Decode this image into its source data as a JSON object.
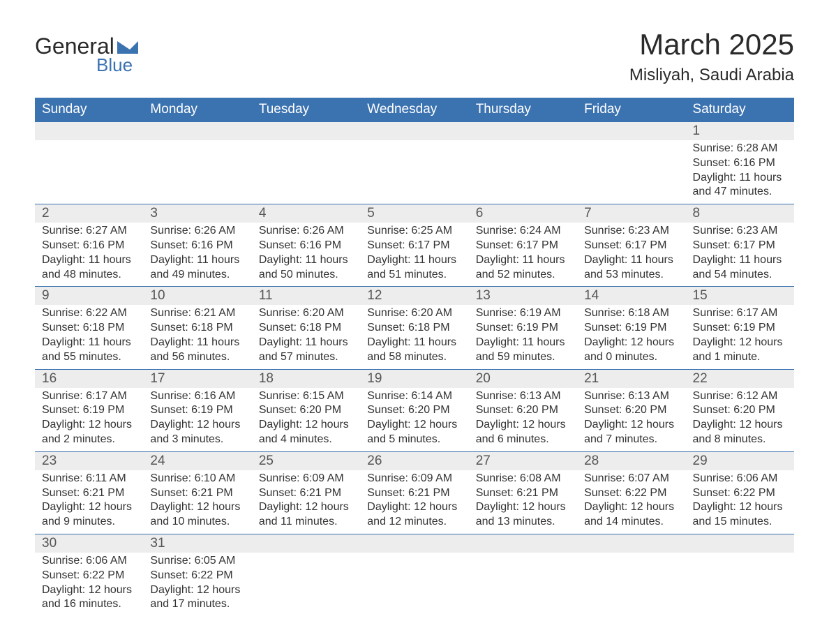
{
  "logo": {
    "word1": "General",
    "word2": "Blue"
  },
  "title": "March 2025",
  "location": "Misliyah, Saudi Arabia",
  "colors": {
    "header_bg": "#3b72b0",
    "header_text": "#ffffff",
    "daynum_bg": "#ededed",
    "body_text": "#333333",
    "border": "#3b72b0"
  },
  "weekdays": [
    "Sunday",
    "Monday",
    "Tuesday",
    "Wednesday",
    "Thursday",
    "Friday",
    "Saturday"
  ],
  "weeks": [
    [
      null,
      null,
      null,
      null,
      null,
      null,
      {
        "n": "1",
        "sr": "Sunrise: 6:28 AM",
        "ss": "Sunset: 6:16 PM",
        "dl": "Daylight: 11 hours and 47 minutes."
      }
    ],
    [
      {
        "n": "2",
        "sr": "Sunrise: 6:27 AM",
        "ss": "Sunset: 6:16 PM",
        "dl": "Daylight: 11 hours and 48 minutes."
      },
      {
        "n": "3",
        "sr": "Sunrise: 6:26 AM",
        "ss": "Sunset: 6:16 PM",
        "dl": "Daylight: 11 hours and 49 minutes."
      },
      {
        "n": "4",
        "sr": "Sunrise: 6:26 AM",
        "ss": "Sunset: 6:16 PM",
        "dl": "Daylight: 11 hours and 50 minutes."
      },
      {
        "n": "5",
        "sr": "Sunrise: 6:25 AM",
        "ss": "Sunset: 6:17 PM",
        "dl": "Daylight: 11 hours and 51 minutes."
      },
      {
        "n": "6",
        "sr": "Sunrise: 6:24 AM",
        "ss": "Sunset: 6:17 PM",
        "dl": "Daylight: 11 hours and 52 minutes."
      },
      {
        "n": "7",
        "sr": "Sunrise: 6:23 AM",
        "ss": "Sunset: 6:17 PM",
        "dl": "Daylight: 11 hours and 53 minutes."
      },
      {
        "n": "8",
        "sr": "Sunrise: 6:23 AM",
        "ss": "Sunset: 6:17 PM",
        "dl": "Daylight: 11 hours and 54 minutes."
      }
    ],
    [
      {
        "n": "9",
        "sr": "Sunrise: 6:22 AM",
        "ss": "Sunset: 6:18 PM",
        "dl": "Daylight: 11 hours and 55 minutes."
      },
      {
        "n": "10",
        "sr": "Sunrise: 6:21 AM",
        "ss": "Sunset: 6:18 PM",
        "dl": "Daylight: 11 hours and 56 minutes."
      },
      {
        "n": "11",
        "sr": "Sunrise: 6:20 AM",
        "ss": "Sunset: 6:18 PM",
        "dl": "Daylight: 11 hours and 57 minutes."
      },
      {
        "n": "12",
        "sr": "Sunrise: 6:20 AM",
        "ss": "Sunset: 6:18 PM",
        "dl": "Daylight: 11 hours and 58 minutes."
      },
      {
        "n": "13",
        "sr": "Sunrise: 6:19 AM",
        "ss": "Sunset: 6:19 PM",
        "dl": "Daylight: 11 hours and 59 minutes."
      },
      {
        "n": "14",
        "sr": "Sunrise: 6:18 AM",
        "ss": "Sunset: 6:19 PM",
        "dl": "Daylight: 12 hours and 0 minutes."
      },
      {
        "n": "15",
        "sr": "Sunrise: 6:17 AM",
        "ss": "Sunset: 6:19 PM",
        "dl": "Daylight: 12 hours and 1 minute."
      }
    ],
    [
      {
        "n": "16",
        "sr": "Sunrise: 6:17 AM",
        "ss": "Sunset: 6:19 PM",
        "dl": "Daylight: 12 hours and 2 minutes."
      },
      {
        "n": "17",
        "sr": "Sunrise: 6:16 AM",
        "ss": "Sunset: 6:19 PM",
        "dl": "Daylight: 12 hours and 3 minutes."
      },
      {
        "n": "18",
        "sr": "Sunrise: 6:15 AM",
        "ss": "Sunset: 6:20 PM",
        "dl": "Daylight: 12 hours and 4 minutes."
      },
      {
        "n": "19",
        "sr": "Sunrise: 6:14 AM",
        "ss": "Sunset: 6:20 PM",
        "dl": "Daylight: 12 hours and 5 minutes."
      },
      {
        "n": "20",
        "sr": "Sunrise: 6:13 AM",
        "ss": "Sunset: 6:20 PM",
        "dl": "Daylight: 12 hours and 6 minutes."
      },
      {
        "n": "21",
        "sr": "Sunrise: 6:13 AM",
        "ss": "Sunset: 6:20 PM",
        "dl": "Daylight: 12 hours and 7 minutes."
      },
      {
        "n": "22",
        "sr": "Sunrise: 6:12 AM",
        "ss": "Sunset: 6:20 PM",
        "dl": "Daylight: 12 hours and 8 minutes."
      }
    ],
    [
      {
        "n": "23",
        "sr": "Sunrise: 6:11 AM",
        "ss": "Sunset: 6:21 PM",
        "dl": "Daylight: 12 hours and 9 minutes."
      },
      {
        "n": "24",
        "sr": "Sunrise: 6:10 AM",
        "ss": "Sunset: 6:21 PM",
        "dl": "Daylight: 12 hours and 10 minutes."
      },
      {
        "n": "25",
        "sr": "Sunrise: 6:09 AM",
        "ss": "Sunset: 6:21 PM",
        "dl": "Daylight: 12 hours and 11 minutes."
      },
      {
        "n": "26",
        "sr": "Sunrise: 6:09 AM",
        "ss": "Sunset: 6:21 PM",
        "dl": "Daylight: 12 hours and 12 minutes."
      },
      {
        "n": "27",
        "sr": "Sunrise: 6:08 AM",
        "ss": "Sunset: 6:21 PM",
        "dl": "Daylight: 12 hours and 13 minutes."
      },
      {
        "n": "28",
        "sr": "Sunrise: 6:07 AM",
        "ss": "Sunset: 6:22 PM",
        "dl": "Daylight: 12 hours and 14 minutes."
      },
      {
        "n": "29",
        "sr": "Sunrise: 6:06 AM",
        "ss": "Sunset: 6:22 PM",
        "dl": "Daylight: 12 hours and 15 minutes."
      }
    ],
    [
      {
        "n": "30",
        "sr": "Sunrise: 6:06 AM",
        "ss": "Sunset: 6:22 PM",
        "dl": "Daylight: 12 hours and 16 minutes."
      },
      {
        "n": "31",
        "sr": "Sunrise: 6:05 AM",
        "ss": "Sunset: 6:22 PM",
        "dl": "Daylight: 12 hours and 17 minutes."
      },
      null,
      null,
      null,
      null,
      null
    ]
  ]
}
